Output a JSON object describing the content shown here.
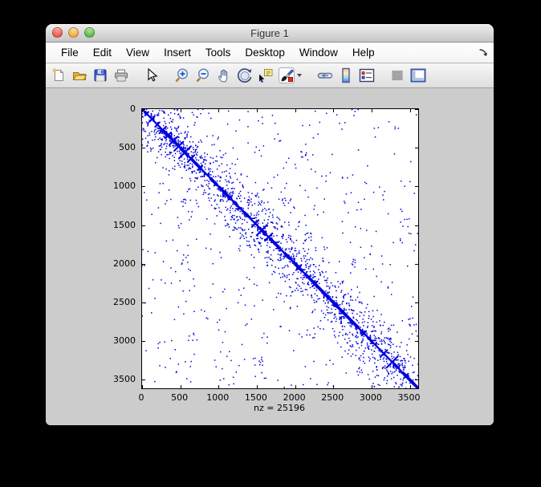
{
  "window": {
    "title": "Figure 1",
    "traffic_lights": [
      "close",
      "minimize",
      "zoom"
    ],
    "menus": [
      "File",
      "Edit",
      "View",
      "Insert",
      "Tools",
      "Desktop",
      "Window",
      "Help"
    ],
    "menu_overflow_icon": "dock-arrow",
    "toolbar": [
      {
        "name": "new-figure",
        "group": 1,
        "enabled": true
      },
      {
        "name": "open-file",
        "group": 1,
        "enabled": true
      },
      {
        "name": "save-figure",
        "group": 1,
        "enabled": true
      },
      {
        "name": "print-figure",
        "group": 1,
        "enabled": true
      },
      {
        "name": "edit-plot",
        "group": 2,
        "enabled": true
      },
      {
        "name": "zoom-in",
        "group": 3,
        "enabled": true
      },
      {
        "name": "zoom-out",
        "group": 3,
        "enabled": true
      },
      {
        "name": "pan",
        "group": 3,
        "enabled": true
      },
      {
        "name": "rotate-3d",
        "group": 3,
        "enabled": true
      },
      {
        "name": "data-cursor",
        "group": 3,
        "enabled": true
      },
      {
        "name": "brush-data",
        "group": 3,
        "enabled": true,
        "dropdown": true
      },
      {
        "name": "link-plot",
        "group": 4,
        "enabled": true
      },
      {
        "name": "insert-colorbar",
        "group": 4,
        "enabled": true
      },
      {
        "name": "insert-legend",
        "group": 4,
        "enabled": true
      },
      {
        "name": "hide-plot-tools",
        "group": 5,
        "enabled": false
      },
      {
        "name": "show-plot-tools",
        "group": 5,
        "enabled": true
      }
    ]
  },
  "chart_data": {
    "type": "scatter",
    "subtype": "spy-sparse-matrix",
    "title": "",
    "xlabel": "nz = 25196",
    "ylabel": "",
    "nnz": 25196,
    "matrix_size": 3610,
    "xlim": [
      0,
      3610
    ],
    "ylim": [
      0,
      3610
    ],
    "y_axis_direction": "down",
    "xticks": [
      0,
      500,
      1000,
      1500,
      2000,
      2500,
      3000,
      3500
    ],
    "yticks": [
      0,
      500,
      1000,
      1500,
      2000,
      2500,
      3000,
      3500
    ],
    "marker_color": "#0000DD",
    "axes_background": "#FFFFFF",
    "figure_background": "#CCCCCC",
    "grid": false,
    "legend": false,
    "structure": "dominant main diagonal band with X-shaped anti-diagonal crossings (dense in first 700 rows, again near 1500-1650 and 3150-3300) plus scattered off-diagonal nonzeros concentrated near the diagonal",
    "render_params": {
      "seed": 7,
      "crosses": [
        [
          60,
          25
        ],
        [
          130,
          35
        ],
        [
          200,
          30
        ],
        [
          270,
          45
        ],
        [
          340,
          40
        ],
        [
          410,
          55
        ],
        [
          480,
          60
        ],
        [
          560,
          80
        ],
        [
          640,
          45
        ],
        [
          760,
          30
        ],
        [
          1150,
          25
        ],
        [
          1480,
          45
        ],
        [
          1565,
          70
        ],
        [
          1655,
          50
        ],
        [
          2050,
          30
        ],
        [
          2260,
          35
        ],
        [
          2620,
          25
        ],
        [
          2900,
          30
        ],
        [
          3160,
          45
        ],
        [
          3270,
          75
        ],
        [
          3450,
          30
        ]
      ],
      "thick_segments": 55,
      "spurs": 70,
      "near_diagonal_points": 950,
      "sigma": 450,
      "mirror_prob": 0.45,
      "uniform_points": 430,
      "clusters": 28
    }
  }
}
